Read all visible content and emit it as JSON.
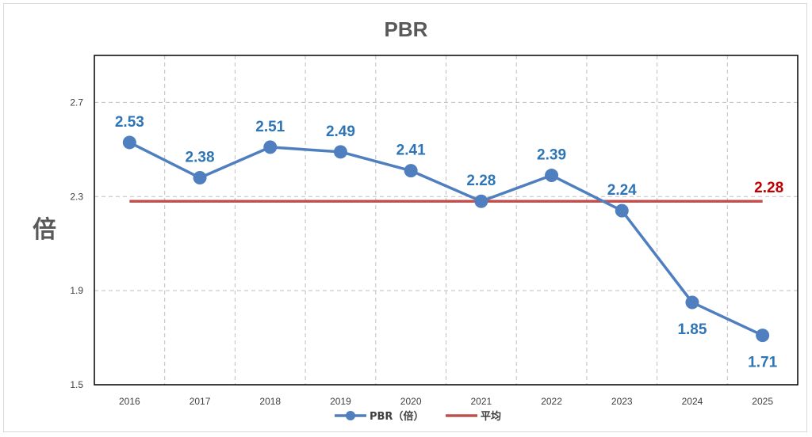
{
  "chart_data": {
    "type": "line",
    "title": "PBR",
    "ylabel": "倍",
    "xlabel": "",
    "categories": [
      "2016",
      "2017",
      "2018",
      "2019",
      "2020",
      "2021",
      "2022",
      "2023",
      "2024",
      "2025"
    ],
    "yticks": [
      "1.5",
      "1.9",
      "2.3",
      "2.7"
    ],
    "ylim": [
      1.5,
      2.9
    ],
    "series": [
      {
        "name": "PBR（倍）",
        "values": [
          2.53,
          2.38,
          2.51,
          2.49,
          2.41,
          2.28,
          2.39,
          2.24,
          1.85,
          1.71
        ],
        "labels": [
          "2.53",
          "2.38",
          "2.51",
          "2.49",
          "2.41",
          "2.28",
          "2.39",
          "2.24",
          "1.85",
          "1.71"
        ],
        "color": "#4f7fbf"
      },
      {
        "name": "平均",
        "values": [
          2.28,
          2.28,
          2.28,
          2.28,
          2.28,
          2.28,
          2.28,
          2.28,
          2.28,
          2.28
        ],
        "end_label": "2.28",
        "color": "#c0504d"
      }
    ],
    "grid": {
      "horizontal": true,
      "vertical": true
    },
    "legend_position": "bottom"
  }
}
